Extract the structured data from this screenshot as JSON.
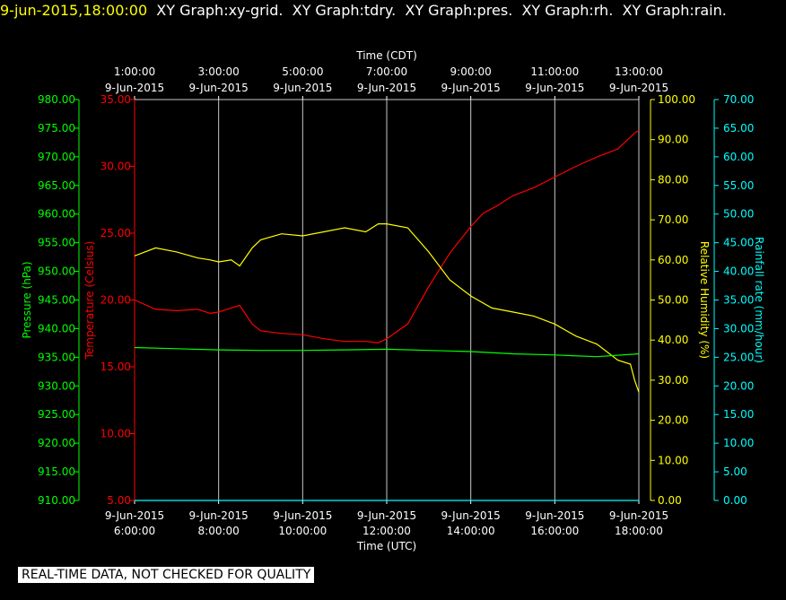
{
  "header": {
    "datetime": "9-jun-2015,18:00:00",
    "tabs": [
      "XY Graph:xy-grid.",
      "XY Graph:tdry.",
      "XY Graph:pres.",
      "XY Graph:rh.",
      "XY Graph:rain."
    ]
  },
  "footer": "REAL-TIME DATA, NOT CHECKED FOR QUALITY",
  "chart_data": {
    "type": "line",
    "top_axis": {
      "label": "Time (CDT)",
      "ticks": [
        {
          "time": "1:00:00",
          "date": "9-Jun-2015"
        },
        {
          "time": "3:00:00",
          "date": "9-Jun-2015"
        },
        {
          "time": "5:00:00",
          "date": "9-Jun-2015"
        },
        {
          "time": "7:00:00",
          "date": "9-Jun-2015"
        },
        {
          "time": "9:00:00",
          "date": "9-Jun-2015"
        },
        {
          "time": "11:00:00",
          "date": "9-Jun-2015"
        },
        {
          "time": "13:00:00",
          "date": "9-Jun-2015"
        }
      ]
    },
    "bottom_axis": {
      "label": "Time (UTC)",
      "range_hours": [
        6,
        18
      ],
      "ticks": [
        {
          "date": "9-Jun-2015",
          "time": "6:00:00"
        },
        {
          "date": "9-Jun-2015",
          "time": "8:00:00"
        },
        {
          "date": "9-Jun-2015",
          "time": "10:00:00"
        },
        {
          "date": "9-Jun-2015",
          "time": "12:00:00"
        },
        {
          "date": "9-Jun-2015",
          "time": "14:00:00"
        },
        {
          "date": "9-Jun-2015",
          "time": "16:00:00"
        },
        {
          "date": "9-Jun-2015",
          "time": "18:00:00"
        }
      ]
    },
    "grid": true,
    "axes": {
      "pressure": {
        "label": "Pressure (hPa)",
        "color": "#00ff00",
        "range": [
          910,
          980
        ],
        "ticks": [
          "910.00",
          "915.00",
          "920.00",
          "925.00",
          "930.00",
          "935.00",
          "940.00",
          "945.00",
          "950.00",
          "955.00",
          "960.00",
          "965.00",
          "970.00",
          "975.00",
          "980.00"
        ]
      },
      "temperature": {
        "label": "Temperature (Celsius)",
        "color": "#ff0000",
        "range": [
          5,
          35
        ],
        "ticks": [
          "5.00",
          "10.00",
          "15.00",
          "20.00",
          "25.00",
          "30.00",
          "35.00"
        ]
      },
      "humidity": {
        "label": "Relative Humidity (%)",
        "color": "#ffff00",
        "range": [
          0,
          100
        ],
        "ticks": [
          "0.00",
          "10.00",
          "20.00",
          "30.00",
          "40.00",
          "50.00",
          "60.00",
          "70.00",
          "80.00",
          "90.00",
          "100.00"
        ]
      },
      "rain": {
        "label": "Rainfall rate (mm/hour)",
        "color": "#00ffff",
        "range": [
          0,
          70
        ],
        "ticks": [
          "0.00",
          "5.00",
          "10.00",
          "15.00",
          "20.00",
          "25.00",
          "30.00",
          "35.00",
          "40.00",
          "45.00",
          "50.00",
          "55.00",
          "60.00",
          "65.00",
          "70.00"
        ]
      }
    },
    "series": [
      {
        "axis": "temperature",
        "color": "#ff0000",
        "x": [
          6.0,
          6.5,
          7.0,
          7.5,
          7.8,
          8.0,
          8.3,
          8.5,
          8.8,
          9.0,
          9.5,
          10.0,
          10.5,
          11.0,
          11.5,
          11.8,
          12.0,
          12.5,
          13.0,
          13.5,
          14.0,
          14.3,
          14.6,
          15.0,
          15.5,
          16.0,
          16.5,
          17.0,
          17.5,
          17.9,
          18.0
        ],
        "values": [
          20.0,
          19.3,
          19.2,
          19.3,
          19.0,
          19.1,
          19.4,
          19.6,
          18.2,
          17.7,
          17.5,
          17.4,
          17.1,
          16.9,
          16.9,
          16.8,
          17.1,
          18.2,
          21.0,
          23.5,
          25.5,
          26.5,
          27.0,
          27.8,
          28.4,
          29.2,
          30.0,
          30.7,
          31.3,
          32.5,
          32.7
        ]
      },
      {
        "axis": "humidity",
        "color": "#ffff00",
        "x": [
          6.0,
          6.5,
          7.0,
          7.5,
          7.8,
          8.0,
          8.3,
          8.5,
          8.8,
          9.0,
          9.5,
          10.0,
          10.5,
          11.0,
          11.5,
          11.8,
          12.0,
          12.5,
          13.0,
          13.5,
          14.0,
          14.5,
          15.0,
          15.5,
          16.0,
          16.5,
          17.0,
          17.5,
          17.8,
          17.9,
          18.0
        ],
        "values": [
          61.0,
          63.0,
          62.0,
          60.5,
          60.0,
          59.5,
          60.0,
          58.5,
          63.0,
          65.0,
          66.5,
          66.0,
          67.0,
          68.0,
          67.0,
          69.0,
          69.0,
          68.0,
          62.0,
          55.0,
          51.0,
          48.0,
          47.0,
          46.0,
          44.0,
          41.0,
          39.0,
          35.0,
          34.0,
          30.0,
          27.0
        ]
      },
      {
        "axis": "pressure",
        "color": "#00ff00",
        "x": [
          6.0,
          7.0,
          8.0,
          9.0,
          10.0,
          11.0,
          12.0,
          13.0,
          14.0,
          15.0,
          16.0,
          17.0,
          18.0
        ],
        "values": [
          936.7,
          936.5,
          936.3,
          936.2,
          936.2,
          936.3,
          936.4,
          936.2,
          936.0,
          935.6,
          935.4,
          935.1,
          935.6
        ]
      },
      {
        "axis": "rain",
        "color": "#00ffff",
        "x": [
          6.0,
          18.0
        ],
        "values": [
          0.0,
          0.0
        ]
      }
    ]
  }
}
